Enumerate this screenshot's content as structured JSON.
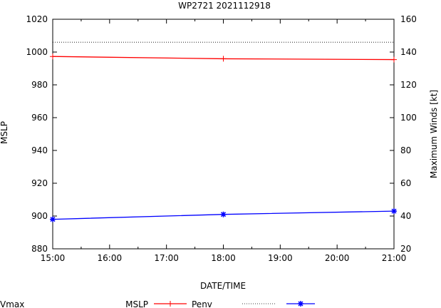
{
  "chart_data": {
    "type": "line",
    "title": "WP2721 2021112918",
    "xlabel": "DATE/TIME",
    "ylabel": "MSLP",
    "y2label": "Maximum Winds [kt]",
    "x_ticks": [
      "15:00",
      "16:00",
      "17:00",
      "18:00",
      "19:00",
      "20:00",
      "21:00"
    ],
    "x_range": [
      15,
      21
    ],
    "ylim": [
      880,
      1020
    ],
    "y_ticks": [
      880,
      900,
      920,
      940,
      960,
      980,
      1000,
      1020
    ],
    "y2lim": [
      20,
      160
    ],
    "y2_ticks": [
      20,
      40,
      60,
      80,
      100,
      120,
      140,
      160
    ],
    "grid": false,
    "legend_placement": "bottom",
    "legend_label": "MSLP",
    "series": [
      {
        "name": "Penv",
        "axis": "left",
        "color": "#ff0000",
        "marker": "plus",
        "x": [
          15,
          18,
          21
        ],
        "y": [
          997.3,
          995.9,
          995.4
        ]
      },
      {
        "name": "",
        "axis": "left",
        "color": "#000000",
        "marker": "none",
        "dash": "dotted",
        "x": [
          15,
          21
        ],
        "y": [
          1006,
          1006
        ]
      },
      {
        "name": "Vmax",
        "axis": "right",
        "color": "#0000ff",
        "marker": "star",
        "x": [
          15,
          18,
          21
        ],
        "y": [
          38,
          41,
          43
        ]
      }
    ]
  }
}
